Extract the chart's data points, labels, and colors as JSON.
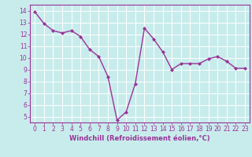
{
  "x": [
    0,
    1,
    2,
    3,
    4,
    5,
    6,
    7,
    8,
    9,
    10,
    11,
    12,
    13,
    14,
    15,
    16,
    17,
    18,
    19,
    20,
    21,
    22,
    23
  ],
  "y": [
    13.9,
    12.9,
    12.3,
    12.1,
    12.3,
    11.8,
    10.7,
    10.1,
    8.4,
    4.7,
    5.4,
    7.8,
    12.5,
    11.6,
    10.5,
    9.0,
    9.5,
    9.5,
    9.5,
    9.9,
    10.1,
    9.7,
    9.1,
    9.1
  ],
  "line_color": "#993399",
  "marker": "D",
  "marker_size": 2.0,
  "background_color": "#c8ecec",
  "grid_color": "#ffffff",
  "xlabel": "Windchill (Refroidissement éolien,°C)",
  "ylim": [
    4.5,
    14.5
  ],
  "xlim": [
    -0.5,
    23.5
  ],
  "yticks": [
    5,
    6,
    7,
    8,
    9,
    10,
    11,
    12,
    13,
    14
  ],
  "xticks": [
    0,
    1,
    2,
    3,
    4,
    5,
    6,
    7,
    8,
    9,
    10,
    11,
    12,
    13,
    14,
    15,
    16,
    17,
    18,
    19,
    20,
    21,
    22,
    23
  ],
  "tick_color": "#993399",
  "label_color": "#993399",
  "axis_color": "#993399",
  "line_width": 1.0,
  "tick_fontsize": 5.5,
  "xlabel_fontsize": 6.0
}
